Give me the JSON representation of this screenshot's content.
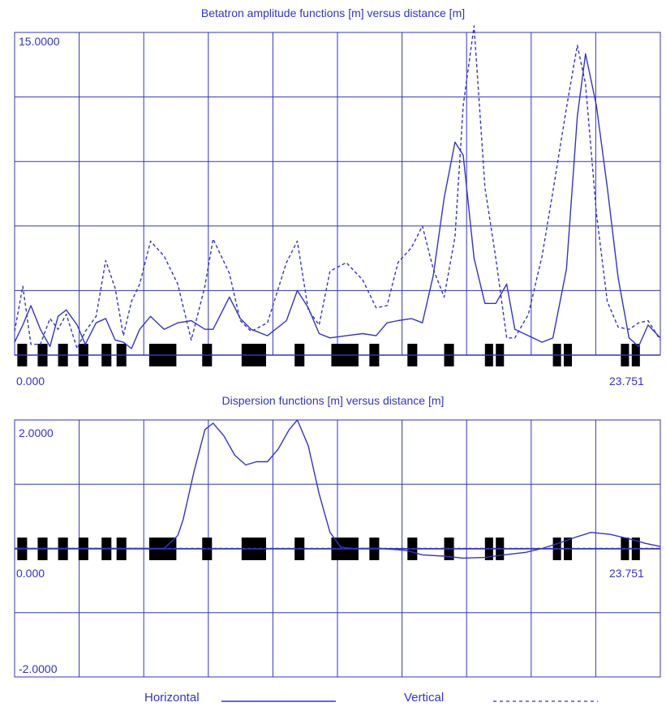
{
  "colors": {
    "line": "#3333cc",
    "grid": "#3333cc",
    "element": "#000000",
    "background": "#ffffff"
  },
  "legend": {
    "horizontal_label": "Horizontal",
    "vertical_label": "Vertical"
  },
  "chart_data": [
    {
      "type": "line",
      "title": "Betatron amplitude functions [m] versus distance [m]",
      "y_top_label": "15.0000",
      "x_min_label": "0.000",
      "x_max_label": "23.751",
      "xlim": [
        0,
        23.751
      ],
      "ylim": [
        0,
        15
      ],
      "grid": true,
      "series": [
        {
          "name": "Horizontal",
          "style": "solid",
          "x": [
            0.0,
            0.3,
            0.6,
            0.95,
            1.3,
            1.6,
            1.9,
            2.3,
            2.6,
            3.0,
            3.35,
            3.7,
            4.0,
            4.3,
            4.6,
            5.0,
            5.5,
            6.0,
            6.5,
            7.0,
            7.3,
            7.9,
            8.3,
            8.7,
            9.3,
            10.0,
            10.4,
            10.8,
            11.2,
            11.6,
            12.2,
            12.8,
            13.3,
            13.7,
            14.1,
            14.6,
            15.0,
            15.4,
            15.8,
            16.2,
            16.5,
            16.9,
            17.3,
            17.7,
            18.1,
            18.4,
            18.9,
            19.4,
            19.8,
            20.3,
            20.7,
            21.0,
            21.4,
            21.8,
            22.2,
            22.6,
            22.95,
            23.3,
            23.751
          ],
          "y": [
            0.6,
            1.4,
            2.3,
            1.2,
            0.4,
            1.8,
            2.1,
            1.4,
            0.5,
            1.5,
            1.7,
            0.7,
            0.6,
            0.3,
            1.2,
            1.8,
            1.2,
            1.5,
            1.6,
            1.2,
            1.2,
            2.7,
            1.7,
            1.2,
            0.9,
            1.6,
            3.0,
            2.2,
            1.0,
            0.8,
            0.9,
            1.0,
            0.9,
            1.5,
            1.6,
            1.7,
            1.5,
            3.7,
            7.3,
            9.9,
            9.3,
            4.5,
            2.4,
            2.4,
            3.3,
            1.2,
            0.9,
            0.6,
            0.8,
            4.0,
            11.1,
            14.0,
            11.6,
            7.8,
            3.6,
            0.8,
            0.4,
            1.4,
            0.8
          ]
        },
        {
          "name": "Vertical",
          "style": "dashed",
          "x": [
            0.0,
            0.3,
            0.6,
            0.95,
            1.3,
            1.6,
            1.9,
            2.3,
            2.6,
            3.0,
            3.35,
            3.7,
            4.0,
            4.3,
            4.6,
            5.0,
            5.5,
            6.0,
            6.5,
            7.0,
            7.3,
            7.9,
            8.3,
            8.7,
            9.3,
            10.0,
            10.4,
            10.8,
            11.2,
            11.6,
            12.2,
            12.8,
            13.3,
            13.7,
            14.1,
            14.6,
            15.0,
            15.4,
            15.8,
            16.2,
            16.5,
            16.9,
            17.3,
            17.7,
            18.1,
            18.4,
            18.9,
            19.4,
            19.8,
            20.3,
            20.7,
            21.0,
            21.4,
            21.8,
            22.2,
            22.6,
            22.95,
            23.3,
            23.751
          ],
          "y": [
            1.1,
            3.2,
            0.5,
            0.5,
            1.7,
            1.2,
            1.9,
            0.3,
            1.1,
            1.8,
            4.4,
            3.1,
            0.9,
            2.5,
            3.3,
            5.3,
            4.6,
            3.3,
            0.7,
            3.2,
            5.4,
            3.8,
            1.6,
            1.1,
            1.5,
            4.3,
            5.3,
            2.1,
            1.4,
            3.9,
            4.3,
            3.5,
            2.2,
            2.3,
            4.3,
            5.0,
            6.0,
            4.0,
            2.7,
            5.5,
            11.6,
            15.3,
            7.8,
            4.5,
            0.8,
            0.8,
            1.9,
            4.6,
            7.6,
            11.5,
            14.4,
            12.6,
            6.6,
            2.5,
            1.3,
            1.2,
            1.5,
            1.6,
            0.7
          ]
        }
      ]
    },
    {
      "type": "line",
      "title": "Dispersion functions [m] versus distance [m]",
      "y_top_label": "2.0000",
      "y_bottom_label": "-2.0000",
      "x_min_label": "0.000",
      "x_max_label": "23.751",
      "xlim": [
        0,
        23.751
      ],
      "ylim": [
        -2,
        2
      ],
      "grid": true,
      "series": [
        {
          "name": "Horizontal",
          "style": "solid",
          "x": [
            0.0,
            5.5,
            6.0,
            6.2,
            6.6,
            7.0,
            7.3,
            7.7,
            8.1,
            8.5,
            8.9,
            9.3,
            9.7,
            10.1,
            10.4,
            10.8,
            11.2,
            11.6,
            12.0,
            12.4,
            13.5,
            14.4,
            15.0,
            15.8,
            16.5,
            17.3,
            18.0,
            18.8,
            19.4,
            20.0,
            20.6,
            21.2,
            21.9,
            22.6,
            23.2,
            23.751
          ],
          "y": [
            0.0,
            0.0,
            0.2,
            0.45,
            1.2,
            1.85,
            1.95,
            1.75,
            1.45,
            1.3,
            1.35,
            1.35,
            1.55,
            1.85,
            2.0,
            1.6,
            0.85,
            0.25,
            0.02,
            0.0,
            0.0,
            -0.03,
            -0.1,
            -0.12,
            -0.15,
            -0.14,
            -0.1,
            -0.06,
            0.0,
            0.08,
            0.17,
            0.25,
            0.22,
            0.15,
            0.08,
            0.03
          ]
        },
        {
          "name": "Vertical",
          "style": "dashed",
          "x": [
            0.0,
            23.751
          ],
          "y": [
            0.0,
            0.0
          ]
        }
      ]
    }
  ],
  "elements": [
    {
      "x": 0.1,
      "w": 0.36,
      "h": 1.05
    },
    {
      "x": 0.85,
      "w": 0.36,
      "h": 1.05
    },
    {
      "x": 1.6,
      "w": 0.36,
      "h": 1.05
    },
    {
      "x": 2.35,
      "w": 0.36,
      "h": 1.05
    },
    {
      "x": 3.2,
      "w": 0.36,
      "h": 1.05
    },
    {
      "x": 3.75,
      "w": 0.36,
      "h": 1.05
    },
    {
      "x": 4.95,
      "w": 1.0,
      "h": 1.05
    },
    {
      "x": 6.9,
      "w": 0.36,
      "h": 1.05
    },
    {
      "x": 8.35,
      "w": 0.9,
      "h": 1.05
    },
    {
      "x": 10.3,
      "w": 0.36,
      "h": 1.05
    },
    {
      "x": 11.65,
      "w": 1.0,
      "h": 1.05
    },
    {
      "x": 13.05,
      "w": 0.36,
      "h": 1.05
    },
    {
      "x": 14.45,
      "w": 0.36,
      "h": 1.05
    },
    {
      "x": 15.8,
      "w": 0.36,
      "h": 1.05
    },
    {
      "x": 17.3,
      "w": 0.3,
      "h": 1.05
    },
    {
      "x": 17.7,
      "w": 0.3,
      "h": 1.05
    },
    {
      "x": 19.8,
      "w": 0.3,
      "h": 1.05
    },
    {
      "x": 20.2,
      "w": 0.3,
      "h": 1.05
    },
    {
      "x": 22.3,
      "w": 0.3,
      "h": 1.05
    },
    {
      "x": 22.7,
      "w": 0.3,
      "h": 1.05
    }
  ]
}
